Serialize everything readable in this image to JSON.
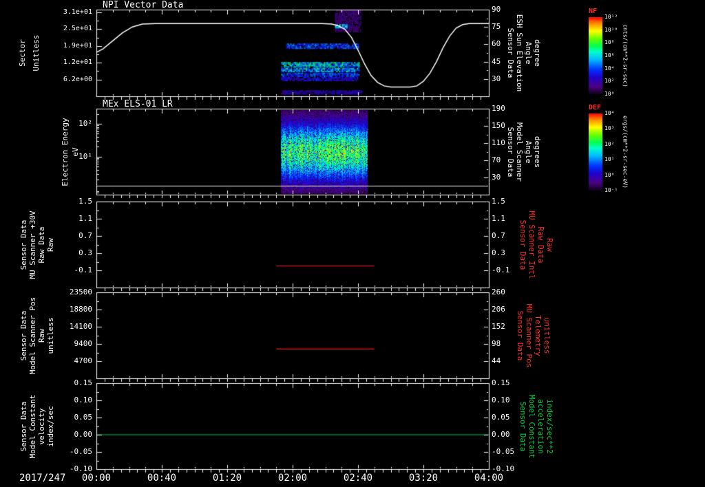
{
  "x_axis": {
    "date_label": "2017/247",
    "range_minutes": [
      0,
      240
    ],
    "ticks": [
      {
        "value": 0,
        "label": "00:00"
      },
      {
        "value": 40,
        "label": "00:40"
      },
      {
        "value": 80,
        "label": "01:20"
      },
      {
        "value": 120,
        "label": "02:00"
      },
      {
        "value": 160,
        "label": "02:40"
      },
      {
        "value": 200,
        "label": "03:20"
      },
      {
        "value": 240,
        "label": "04:00"
      }
    ]
  },
  "colormap": [
    [
      0.0,
      "#0d0016"
    ],
    [
      0.1,
      "#4b0082"
    ],
    [
      0.22,
      "#2200cc"
    ],
    [
      0.32,
      "#0033ff"
    ],
    [
      0.45,
      "#00bbff"
    ],
    [
      0.55,
      "#00ffcc"
    ],
    [
      0.62,
      "#00ff55"
    ],
    [
      0.72,
      "#66ff00"
    ],
    [
      0.82,
      "#ffff00"
    ],
    [
      0.92,
      "#ff8800"
    ],
    [
      1.0,
      "#ff0000"
    ]
  ],
  "colorbars": [
    {
      "title": "NF",
      "title_color": "#ff2f2f",
      "unit_label": "cnts/(cm**2-sr-sec)",
      "ticks": [
        "10¹²",
        "10¹⁰",
        "10⁸",
        "10⁶",
        "10⁴",
        "10²",
        "10⁰"
      ]
    },
    {
      "title": "DEF",
      "title_color": "#ff2f2f",
      "unit_label": "ergs/(cm**2-sr-sec-eV)",
      "ticks": [
        "10⁴",
        "10³",
        "10²",
        "10¹",
        "10⁰",
        "10⁻¹"
      ]
    }
  ],
  "chart_data": [
    {
      "type": "heatmap",
      "title": "NPI Vector Data",
      "left_axis": {
        "label_lines": [
          "Sector",
          "Unitless"
        ],
        "color": "#ffffff",
        "scale": "linear",
        "ylim": [
          0,
          32
        ],
        "ticks": [
          {
            "value": 31,
            "label": "3.1e+01"
          },
          {
            "value": 24.8,
            "label": "2.5e+01"
          },
          {
            "value": 18.6,
            "label": "1.9e+01"
          },
          {
            "value": 12.4,
            "label": "1.2e+01"
          },
          {
            "value": 6.2,
            "label": "6.2e+00"
          }
        ]
      },
      "right_axis": {
        "label_lines": [
          "Sensor Data",
          "ESH Sun Elevation",
          "Angle",
          "degree"
        ],
        "color": "#ffffff",
        "scale": "linear",
        "ylim": [
          15,
          90
        ],
        "ticks": [
          {
            "value": 90,
            "label": "90"
          },
          {
            "value": 75,
            "label": "75"
          },
          {
            "value": 60,
            "label": "60"
          },
          {
            "value": 45,
            "label": "45"
          },
          {
            "value": 30,
            "label": "30"
          }
        ]
      },
      "line_series": [
        {
          "name": "esh-sun-elevation-angle",
          "axis": "right",
          "color": "#ffffff",
          "width": 1.5,
          "points": [
            [
              0,
              53
            ],
            [
              4,
              56
            ],
            [
              10,
              63
            ],
            [
              16,
              70
            ],
            [
              22,
              75
            ],
            [
              28,
              77.5
            ],
            [
              36,
              78
            ],
            [
              80,
              78
            ],
            [
              120,
              78
            ],
            [
              138,
              78
            ],
            [
              144,
              77.5
            ],
            [
              148,
              76
            ],
            [
              152,
              73
            ],
            [
              156,
              66
            ],
            [
              160,
              55
            ],
            [
              164,
              43
            ],
            [
              168,
              33
            ],
            [
              172,
              27
            ],
            [
              176,
              24
            ],
            [
              180,
              23
            ],
            [
              192,
              23
            ],
            [
              196,
              24
            ],
            [
              200,
              28
            ],
            [
              204,
              35
            ],
            [
              208,
              45
            ],
            [
              212,
              57
            ],
            [
              216,
              67
            ],
            [
              220,
              74
            ],
            [
              224,
              77
            ],
            [
              228,
              78
            ],
            [
              240,
              78
            ]
          ]
        }
      ],
      "heatmap_bands": [
        {
          "t_range": [
            116,
            160
          ],
          "sector_range": [
            17.5,
            19.5
          ],
          "intensity": 0.3,
          "speckle": 0.5
        },
        {
          "t_range": [
            113,
            161
          ],
          "sector_range": [
            10.6,
            12.6
          ],
          "intensity": 0.44,
          "speckle": 0.4
        },
        {
          "t_range": [
            113,
            161
          ],
          "sector_range": [
            8.9,
            10.4
          ],
          "intensity": 0.38,
          "speckle": 0.45
        },
        {
          "t_range": [
            113,
            161
          ],
          "sector_range": [
            7.3,
            8.7
          ],
          "intensity": 0.3,
          "speckle": 0.5
        },
        {
          "t_range": [
            113,
            161
          ],
          "sector_range": [
            5.6,
            7.1
          ],
          "intensity": 0.22,
          "speckle": 0.55
        },
        {
          "t_range": [
            113,
            162
          ],
          "sector_range": [
            1.0,
            2.2
          ],
          "intensity": 0.18,
          "speckle": 0.5
        },
        {
          "t_range": [
            146,
            162
          ],
          "sector_range": [
            24.0,
            31.8
          ],
          "intensity": 0.1,
          "speckle": 0.6
        },
        {
          "t_range": [
            146,
            153
          ],
          "sector_range": [
            25.3,
            26.6
          ],
          "intensity": 0.42,
          "speckle": 0.25
        }
      ]
    },
    {
      "type": "spectrogram",
      "title": "MEx ELS-01 LR",
      "left_axis": {
        "label_lines": [
          "Electron Energy",
          "eV"
        ],
        "color": "#ffffff",
        "scale": "log",
        "ylim": [
          0.7,
          290
        ],
        "ticks": [
          {
            "value": 100,
            "label": "10²"
          },
          {
            "value": 10,
            "label": "10¹"
          }
        ]
      },
      "right_axis": {
        "label_lines": [
          "Sensor Data",
          "Model Scanner",
          "Angle",
          "degrees"
        ],
        "color": "#ffffff",
        "scale": "linear",
        "ylim": [
          -10,
          190
        ],
        "ticks": [
          {
            "value": 190,
            "label": "190"
          },
          {
            "value": 150,
            "label": "150"
          },
          {
            "value": 110,
            "label": "110"
          },
          {
            "value": 70,
            "label": "70"
          },
          {
            "value": 30,
            "label": "30"
          }
        ]
      },
      "blob": {
        "t_range": [
          113,
          166
        ],
        "center_log_ev": 1.15,
        "sigma_log": 0.62,
        "peak": 0.63,
        "noise": 0.55
      },
      "hline": {
        "value_ev": 1.3,
        "color": "#ffffff"
      }
    },
    {
      "type": "line",
      "title": "",
      "left_axis": {
        "label_lines": [
          "Sensor Data",
          "MU Scanner +30V",
          "Raw Data",
          "Raw"
        ],
        "color": "#ffffff",
        "scale": "linear",
        "ylim": [
          -0.5,
          1.5
        ],
        "ticks": [
          {
            "value": 1.5,
            "label": "1.5"
          },
          {
            "value": 1.1,
            "label": "1.1"
          },
          {
            "value": 0.7,
            "label": "0.7"
          },
          {
            "value": 0.3,
            "label": "0.3"
          },
          {
            "value": -0.1,
            "label": "-0.1"
          }
        ]
      },
      "right_axis": {
        "label_lines": [
          "Sensor Data",
          "MU Scanner Intl",
          "Raw Data",
          "Raw"
        ],
        "color": "#ff2f2f",
        "scale": "linear",
        "ylim": [
          -0.5,
          1.5
        ],
        "ticks": [
          {
            "value": 1.5,
            "label": "1.5"
          },
          {
            "value": 1.1,
            "label": "1.1"
          },
          {
            "value": 0.7,
            "label": "0.7"
          },
          {
            "value": 0.3,
            "label": "0.3"
          },
          {
            "value": -0.1,
            "label": "-0.1"
          }
        ]
      },
      "line_series": [
        {
          "name": "mu-scanner-raw",
          "axis": "left",
          "color": "#ff2222",
          "width": 1.2,
          "points": [
            [
              110,
              0.0
            ],
            [
              170,
              0.0
            ]
          ]
        }
      ]
    },
    {
      "type": "line",
      "title": "",
      "left_axis": {
        "label_lines": [
          "Sensor Data",
          "Model Scanner Pos",
          "Raw",
          "unitless"
        ],
        "color": "#ffffff",
        "scale": "linear",
        "ylim": [
          0,
          23500
        ],
        "ticks": [
          {
            "value": 23500,
            "label": "23500"
          },
          {
            "value": 18800,
            "label": "18800"
          },
          {
            "value": 14100,
            "label": "14100"
          },
          {
            "value": 9400,
            "label": "9400"
          },
          {
            "value": 4700,
            "label": "4700"
          }
        ]
      },
      "right_axis": {
        "label_lines": [
          "Sensor Data",
          "MU Scanner Pos",
          "Telemetry",
          "unitless"
        ],
        "color": "#ff2f2f",
        "scale": "linear",
        "ylim": [
          -10,
          260
        ],
        "ticks": [
          {
            "value": 260,
            "label": "260"
          },
          {
            "value": 206,
            "label": "206"
          },
          {
            "value": 152,
            "label": "152"
          },
          {
            "value": 98,
            "label": "98"
          },
          {
            "value": 44,
            "label": "44"
          }
        ]
      },
      "line_series": [
        {
          "name": "model-scanner-pos",
          "axis": "left",
          "color": "#ff2222",
          "width": 1.2,
          "points": [
            [
              110,
              8000
            ],
            [
              170,
              8000
            ]
          ]
        }
      ]
    },
    {
      "type": "line",
      "title": "",
      "left_axis": {
        "label_lines": [
          "Sensor Data",
          "Model Constant",
          "velocity",
          "index/sec"
        ],
        "color": "#ffffff",
        "scale": "linear",
        "ylim": [
          -0.1,
          0.15
        ],
        "ticks": [
          {
            "value": 0.15,
            "label": "0.15"
          },
          {
            "value": 0.1,
            "label": "0.10"
          },
          {
            "value": 0.05,
            "label": "0.05"
          },
          {
            "value": 0.0,
            "label": "0.00"
          },
          {
            "value": -0.05,
            "label": "-0.05"
          },
          {
            "value": -0.1,
            "label": "-0.10"
          }
        ]
      },
      "right_axis": {
        "label_lines": [
          "Sensor Data",
          "Model Constant",
          "acceleration",
          "index/sec**2"
        ],
        "color": "#00d045",
        "scale": "linear",
        "ylim": [
          -0.1,
          0.15
        ],
        "ticks": [
          {
            "value": 0.15,
            "label": "0.15"
          },
          {
            "value": 0.1,
            "label": "0.10"
          },
          {
            "value": 0.05,
            "label": "0.05"
          },
          {
            "value": 0.0,
            "label": "0.00"
          },
          {
            "value": -0.05,
            "label": "-0.05"
          },
          {
            "value": -0.1,
            "label": "-0.10"
          }
        ]
      },
      "line_series": [
        {
          "name": "model-constant-velocity",
          "axis": "left",
          "color": "#00c050",
          "width": 1.2,
          "points": [
            [
              0,
              0.0
            ],
            [
              240,
              0.0
            ]
          ]
        }
      ]
    }
  ]
}
